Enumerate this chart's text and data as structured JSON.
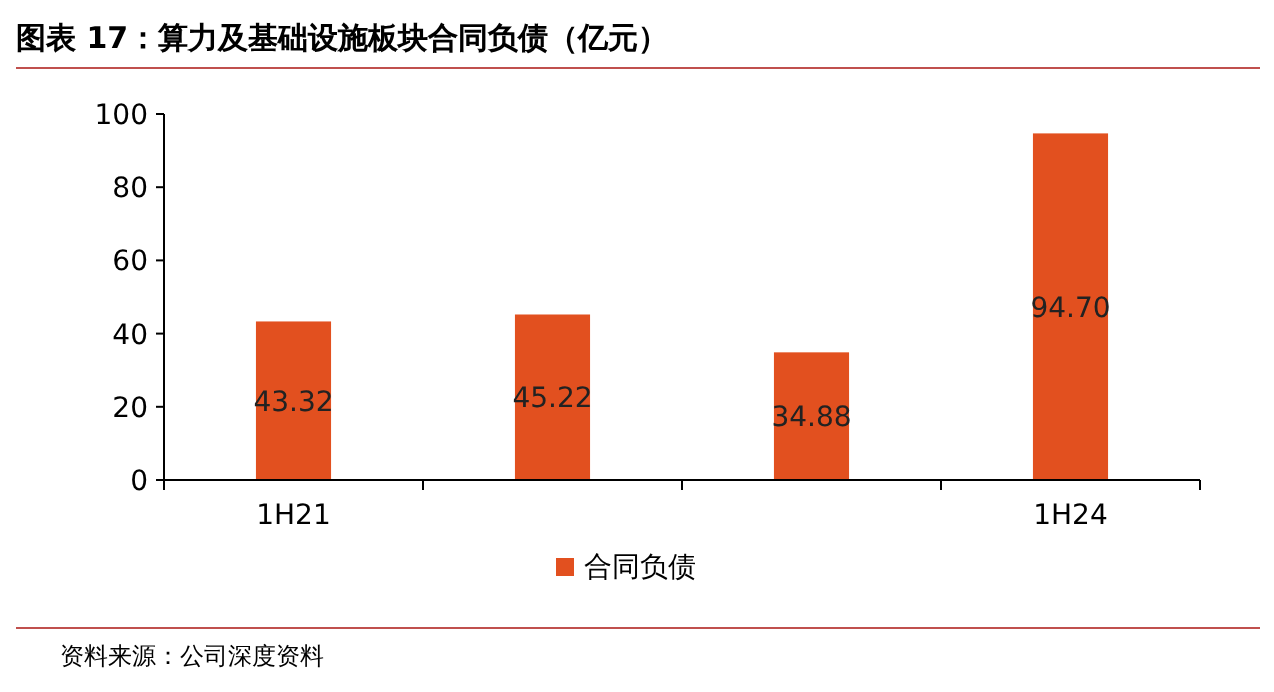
{
  "chart_data": {
    "type": "bar",
    "title": "图表 17：算力及基础设施板块合同负债（亿元）",
    "categories": [
      "1H21",
      null,
      null,
      "1H24"
    ],
    "series": [
      {
        "name": "合同负债",
        "color": "#e2501f",
        "values": [
          43.32,
          45.22,
          34.88,
          94.7
        ],
        "value_labels": [
          "43.32",
          "45.22",
          "34.88",
          "94.70"
        ]
      }
    ],
    "ylim": [
      0,
      100
    ],
    "yticks": [
      0,
      20,
      40,
      60,
      80,
      100
    ],
    "grid": false,
    "legend": "bottom",
    "annotations": [
      "资料来源：公司深度资料"
    ]
  }
}
